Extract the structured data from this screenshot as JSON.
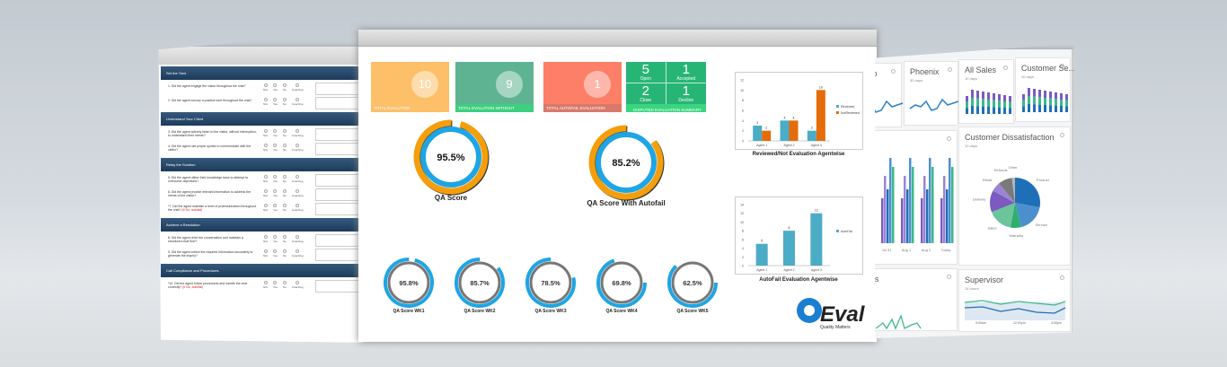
{
  "form": {
    "options": [
      "N/A",
      "Yes",
      "No",
      "Coaching"
    ],
    "sections": [
      {
        "title": "Set the Tone",
        "score": "0 / 0",
        "questions": [
          {
            "text": "1. Did the agent engage the visitor throughout the chat?"
          },
          {
            "text": "2. Did the agent convey a positive tone throughout the chat?"
          }
        ]
      },
      {
        "title": "Understand Your Client",
        "score": "0 / 0",
        "questions": [
          {
            "text": "3. Did the agent actively listen to the visitor, without interruption, to understand their needs?"
          },
          {
            "text": "4. Did the agent use proper syntax to communicate with the visitor?"
          }
        ]
      },
      {
        "title": "Relay the Solution",
        "score": "0 / 0",
        "questions": [
          {
            "text": "5. Did the agent utilize their knowledge base to attempt to overcome objections?"
          },
          {
            "text": "6. Did the agent provide relevant information to address the needs of the visitor?"
          },
          {
            "text": "*7. Did the agent maintain a level of professionalism throughout the chat?",
            "flag": "(If No, autofail)"
          }
        ]
      },
      {
        "title": "Achieve a Resolution",
        "score": "0 / 0",
        "questions": [
          {
            "text": "8. Did the agent drive the conversation and maintain a structured chat flow?"
          },
          {
            "text": "9. Did the agent collect the required information accurately to generate the inquiry?"
          }
        ]
      },
      {
        "title": "Call Compliance and Procedures",
        "score": "0 / 0",
        "questions": [
          {
            "text": "*10. Did the agent follow procedures and handle the chat correctly?",
            "flag": "(If No, autofail)"
          }
        ]
      }
    ]
  },
  "tiles": [
    {
      "value": "10",
      "label": "TOTAL EVALUTION",
      "color": "#fdbf68",
      "bar": "#fdbf68"
    },
    {
      "value": "9",
      "label": "TOTAL EVALUTION WITHOUT AUTOFAIL",
      "color": "#5eb393",
      "bar": "#3ecf7f"
    },
    {
      "value": "1",
      "label": "TOTAL AUTOFAIL EVALUATION",
      "color": "#fe7f67",
      "bar": "#d8796b"
    }
  ],
  "disputed": {
    "label": "DISPUTED  EVALUATION SUMMARY",
    "color": "#27b576",
    "items": [
      {
        "value": "5",
        "label": "Open"
      },
      {
        "value": "1",
        "label": "Accepted"
      },
      {
        "value": "2",
        "label": "Close"
      },
      {
        "value": "1",
        "label": "Decline"
      }
    ]
  },
  "gauges": [
    {
      "value": "95.5%",
      "pct": 95.5,
      "label": "QA Score"
    },
    {
      "value": "85.2%",
      "pct": 85.2,
      "label": "QA Score With Autofail"
    }
  ],
  "weekly": [
    {
      "value": "95.8%",
      "pct": 95.8,
      "label": "QA Score WK1"
    },
    {
      "value": "85.7%",
      "pct": 85.7,
      "label": "QA Score WK2"
    },
    {
      "value": "78.5%",
      "pct": 78.5,
      "label": "QA Score WK3"
    },
    {
      "value": "69.8%",
      "pct": 69.8,
      "label": "QA Score WK4"
    },
    {
      "value": "62.5%",
      "pct": 62.5,
      "label": "QA Score WK5"
    }
  ],
  "colors": {
    "orange": "#f59e0b",
    "blue": "#1ea5e4",
    "gray": "#777777",
    "teal": "#4bacc6",
    "darkorange": "#e46c0a"
  },
  "chart_data": [
    {
      "type": "bar",
      "title": "Reviewed/Not Evaluation Agentwise",
      "categories": [
        "Agent 1",
        "Agent 2",
        "Agent 3"
      ],
      "series": [
        {
          "name": "Reviewed",
          "values": [
            3,
            4,
            2
          ]
        },
        {
          "name": "NotReviewed",
          "values": [
            2,
            4,
            10
          ]
        }
      ],
      "ylim": [
        0,
        12
      ],
      "yticks": [
        0,
        2,
        4,
        6,
        8,
        10,
        12
      ],
      "legend": "right"
    },
    {
      "type": "bar",
      "title": "AutoFail Evaluation Agentwise",
      "categories": [
        "Agent 1",
        "Agent 2",
        "Agent 3"
      ],
      "series": [
        {
          "name": "AutoFail",
          "values": [
            5,
            8,
            12
          ]
        }
      ],
      "ylim": [
        0,
        14
      ],
      "yticks": [
        0,
        2,
        4,
        6,
        8,
        10,
        12,
        14
      ],
      "legend": "right"
    }
  ],
  "logo": {
    "text": "QEval",
    "tagline": "Quality Matters"
  },
  "right": {
    "tiles": [
      {
        "title": "ncisco"
      },
      {
        "title": "Phoenix",
        "sub": "30 days"
      },
      {
        "title": "All Sales",
        "sub": "10 days"
      },
      {
        "title": "Customer Se...",
        "sub": "10 days"
      }
    ],
    "bar_xlabels": [
      "Jul 31",
      "Aug 1",
      "Aug 2",
      "Today"
    ],
    "pie": {
      "title": "Customer Dissatisfaction",
      "sub": "10 days",
      "slices": [
        {
          "label": "Product",
          "value": 28,
          "color": "#1f6fb8"
        },
        {
          "label": "Service",
          "value": 18,
          "color": "#4b90cc"
        },
        {
          "label": "Warranty",
          "value": 7,
          "color": "#2fae6f"
        },
        {
          "label": "Sales",
          "value": 16,
          "color": "#6cc49a"
        },
        {
          "label": "Delivery",
          "value": 14,
          "color": "#7b5bbf"
        },
        {
          "label": "Retail",
          "value": 6,
          "color": "#9b84d4"
        },
        {
          "label": "Refunds",
          "value": 9,
          "color": "#7a7a7a"
        },
        {
          "label": "Other",
          "value": 2,
          "color": "#b5b5b5"
        }
      ]
    },
    "offers": {
      "title": "t offers"
    },
    "supervisor": {
      "title": "Supervisor",
      "sub": "24 hours",
      "xlabels": [
        "9:00am",
        "12:00pm",
        "3:00pm"
      ]
    }
  }
}
